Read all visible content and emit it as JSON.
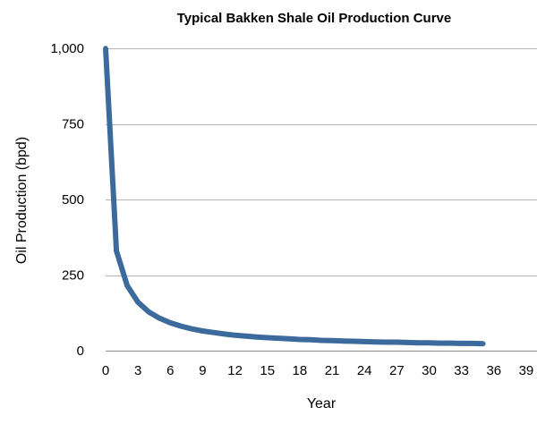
{
  "chart_data": {
    "type": "line",
    "title": "Typical Bakken Shale Oil Production Curve",
    "xlabel": "Year",
    "ylabel": "Oil Production (bpd)",
    "xlim": [
      0,
      40
    ],
    "ylim": [
      0,
      1000
    ],
    "x_ticks": [
      0,
      3,
      6,
      9,
      12,
      15,
      18,
      21,
      24,
      27,
      30,
      33,
      36,
      39
    ],
    "x_tick_labels": [
      "0",
      "3",
      "6",
      "9",
      "12",
      "15",
      "18",
      "21",
      "24",
      "27",
      "30",
      "33",
      "36",
      "39"
    ],
    "y_ticks": [
      0,
      250,
      500,
      750,
      1000
    ],
    "y_tick_labels": [
      "0",
      "250",
      "500",
      "750",
      "1,000"
    ],
    "grid": true,
    "legend": "none",
    "series": [
      {
        "color": "#3d6a9c",
        "x": [
          0,
          1,
          2,
          3,
          4,
          5,
          6,
          7,
          8,
          9,
          10,
          11,
          12,
          13,
          14,
          15,
          16,
          17,
          18,
          19,
          20,
          21,
          22,
          23,
          24,
          25,
          26,
          27,
          28,
          29,
          30,
          31,
          32,
          33,
          34,
          35
        ],
        "y": [
          1000,
          330,
          215,
          160,
          128,
          107,
          92,
          81,
          72,
          65,
          60,
          55,
          51,
          48,
          45,
          43,
          41,
          39,
          37,
          36,
          34,
          33,
          32,
          31,
          30,
          29,
          28,
          28,
          27,
          26,
          26,
          25,
          25,
          24,
          24,
          23
        ]
      }
    ]
  }
}
